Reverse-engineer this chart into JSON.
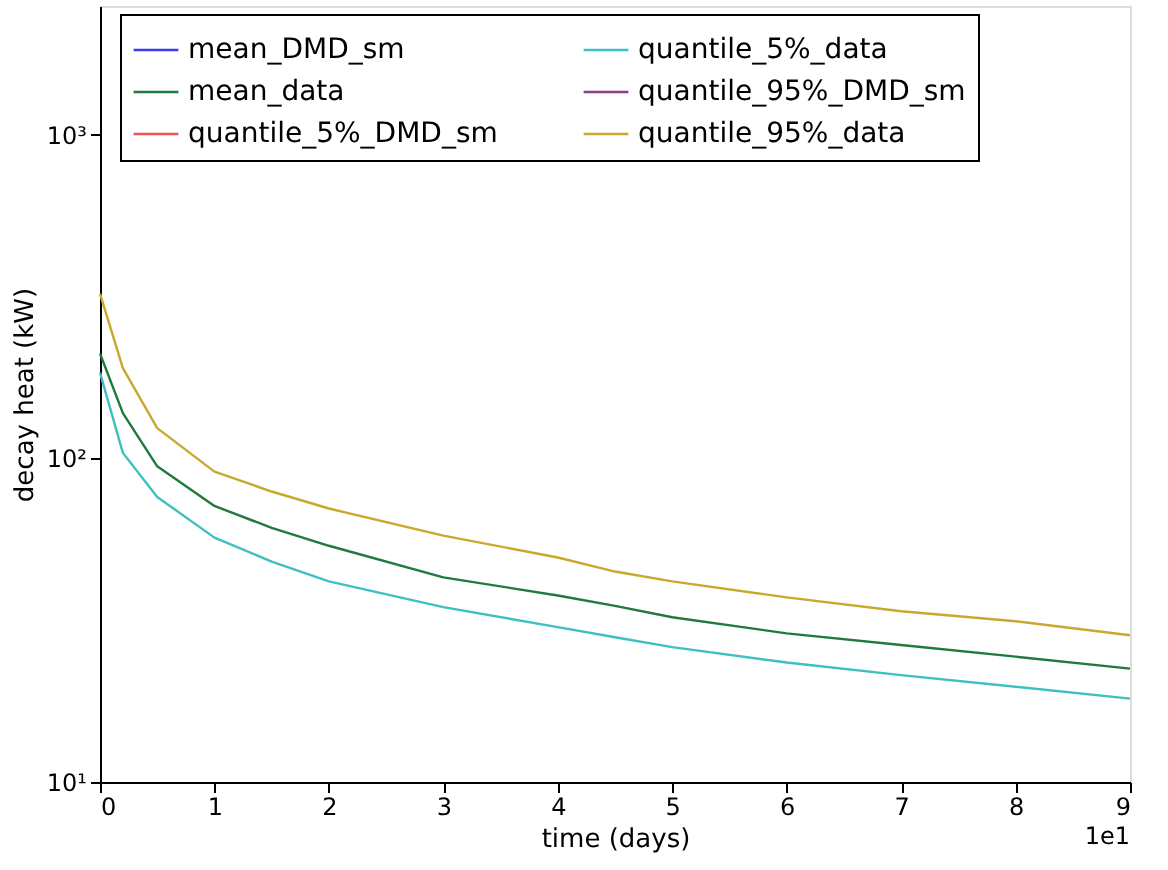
{
  "chart_data": {
    "type": "line",
    "xlabel": "time (days)",
    "ylabel": "decay heat (kW)",
    "x": [
      0,
      0.2,
      0.5,
      1,
      1.5,
      2,
      3,
      4,
      4.5,
      5,
      6,
      7,
      8,
      9
    ],
    "series": [
      {
        "name": "mean_DMD_sm",
        "color": "#3a3af0",
        "values": [
          null,
          null,
          null,
          null,
          null,
          null,
          null,
          null,
          null,
          null,
          null,
          null,
          null,
          null
        ]
      },
      {
        "name": "mean_data",
        "color": "#1f7a3c",
        "values": [
          211,
          138,
          94.5,
          71.3,
          61,
          53.7,
          42.9,
          37.7,
          35,
          32.3,
          28.8,
          26.5,
          24.4,
          22.4
        ]
      },
      {
        "name": "quantile_5%_DMD_sm",
        "color": "#f05050",
        "values": [
          null,
          null,
          null,
          null,
          null,
          null,
          null,
          null,
          null,
          null,
          null,
          null,
          null,
          null
        ]
      },
      {
        "name": "quantile_5%_data",
        "color": "#3fbfbf",
        "values": [
          184,
          104,
          76,
          56.9,
          48,
          41.7,
          34.7,
          30.1,
          28,
          26.1,
          23.4,
          21.4,
          19.7,
          18.1
        ]
      },
      {
        "name": "quantile_95%_DMD_sm",
        "color": "#8e3a8e",
        "values": [
          null,
          null,
          null,
          null,
          null,
          null,
          null,
          null,
          null,
          null,
          null,
          null,
          null,
          null
        ]
      },
      {
        "name": "quantile_95%_data",
        "color": "#c9a82e",
        "values": [
          323,
          190,
          124,
          91,
          79,
          70,
          57.7,
          49.4,
          44.7,
          41.7,
          37.2,
          33.7,
          31.4,
          28.4
        ]
      }
    ],
    "xlim": [
      0,
      9
    ],
    "xticks": [
      0,
      1,
      2,
      3,
      4,
      5,
      6,
      7,
      8,
      9
    ],
    "ylim": [
      10,
      2500
    ],
    "yticks": [
      {
        "value": 10,
        "label": "10¹"
      },
      {
        "value": 100,
        "label": "10²"
      },
      {
        "value": 1000,
        "label": "10³"
      }
    ],
    "log": "y",
    "grid": false,
    "legend": "top",
    "line_style": "solid",
    "marker": "none",
    "annotations": [
      "1e1"
    ]
  }
}
